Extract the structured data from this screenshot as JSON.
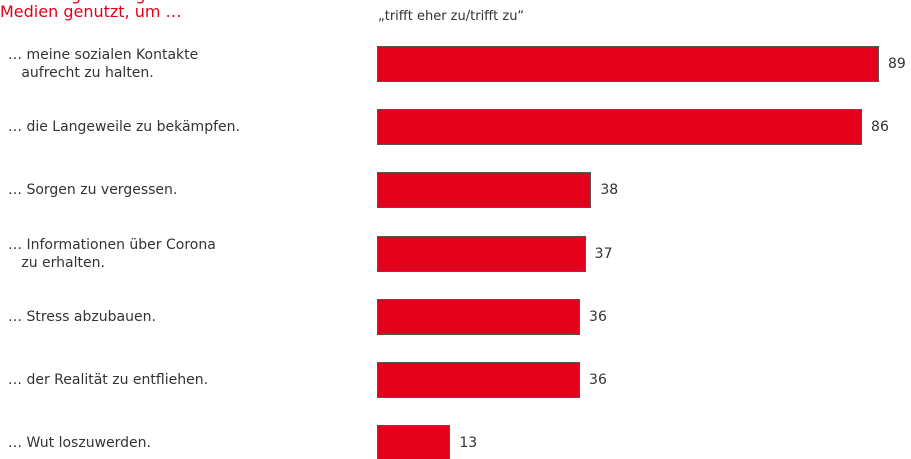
{
  "chart_data": {
    "type": "bar",
    "orientation": "horizontal",
    "title": "Monat regelmäßig soziale\nMedien genutzt, um …",
    "subtitle": "„trifft eher zu/trifft zu“",
    "categories": [
      "… meine sozialen Kontakte\n   aufrecht zu halten.",
      "… die Langeweile zu bekämpfen.",
      "… Sorgen zu vergessen.",
      "… Informationen über Corona\n   zu erhalten.",
      "… Stress abzubauen.",
      "… der Realität zu entfliehen.",
      "… Wut loszuwerden."
    ],
    "values": [
      89,
      86,
      38,
      37,
      36,
      36,
      13
    ],
    "color": "#e2001a"
  }
}
